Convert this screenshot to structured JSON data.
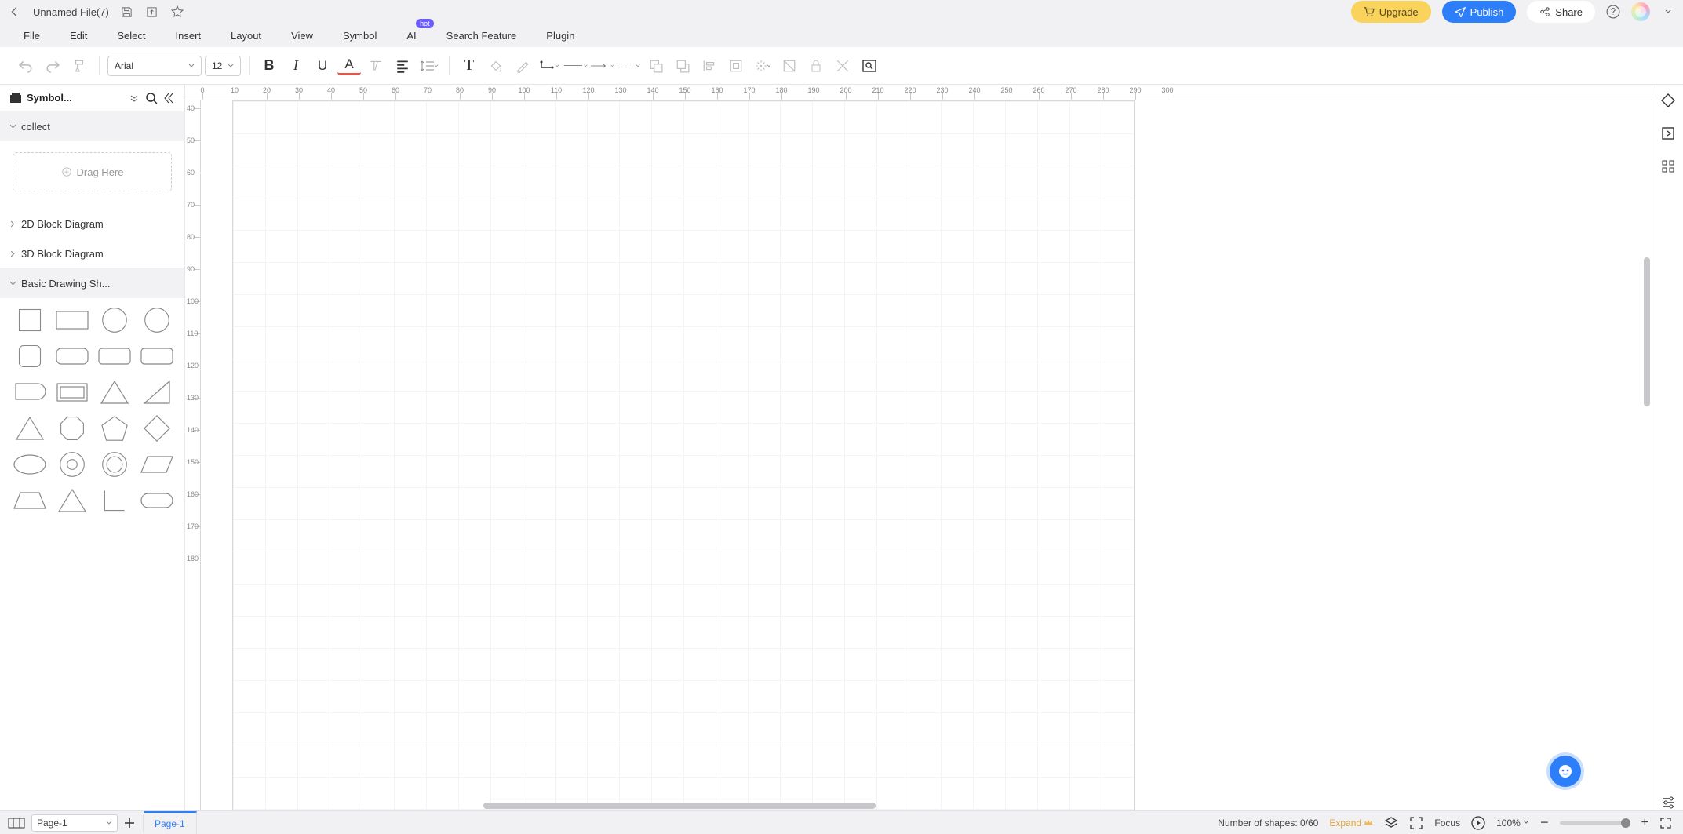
{
  "titlebar": {
    "filename": "Unnamed File(7)",
    "upgrade": "Upgrade",
    "publish": "Publish",
    "share": "Share"
  },
  "menubar": {
    "file": "File",
    "edit": "Edit",
    "select": "Select",
    "insert": "Insert",
    "layout": "Layout",
    "view": "View",
    "symbol": "Symbol",
    "ai": "AI",
    "ai_badge": "hot",
    "search": "Search Feature",
    "plugin": "Plugin"
  },
  "toolbar": {
    "font": "Arial",
    "size": "12"
  },
  "sidebar": {
    "header": "Symbol...",
    "collect": "collect",
    "drag_here": "Drag Here",
    "cat_2d": "2D Block Diagram",
    "cat_3d": "3D Block Diagram",
    "cat_basic": "Basic Drawing Sh..."
  },
  "ruler": {
    "h_start": 0,
    "h_step": 10,
    "h_count": 31,
    "v_start": 40,
    "v_step": 10,
    "v_count": 15
  },
  "statusbar": {
    "page_select": "Page-1",
    "page_tab": "Page-1",
    "shape_count_label": "Number of shapes: ",
    "shape_count": "0/60",
    "expand": "Expand",
    "focus": "Focus",
    "zoom": "100%"
  },
  "colors": {
    "upgrade_bg": "#f9d35c",
    "publish_bg": "#2d7ff9",
    "hot_bg": "#6b5cff",
    "expand": "#e2a33c"
  }
}
